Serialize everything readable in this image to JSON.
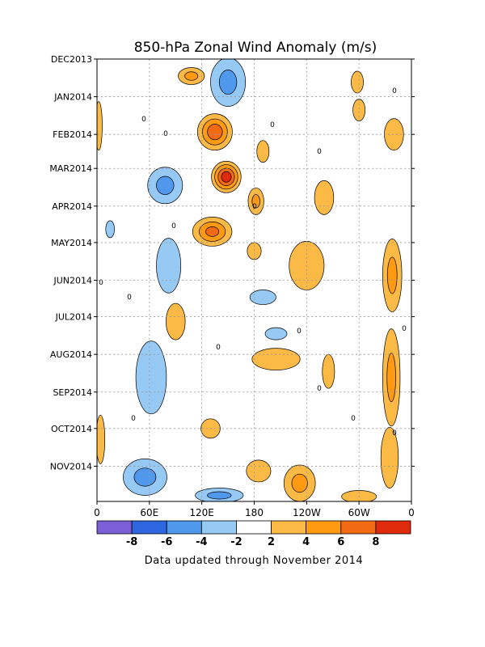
{
  "chart_data": {
    "type": "heatmap",
    "title": "850-hPa Zonal Wind Anomaly (m/s)",
    "footer": "Data updated through November 2014",
    "xlabel": "",
    "ylabel": "",
    "x_ticks": [
      "0",
      "60E",
      "120E",
      "180",
      "120W",
      "60W",
      "0"
    ],
    "y_ticks": [
      "DEC2013",
      "JAN2014",
      "FEB2014",
      "MAR2014",
      "APR2014",
      "MAY2014",
      "JUN2014",
      "JUL2014",
      "AUG2014",
      "SEP2014",
      "OCT2014",
      "NOV2014"
    ],
    "xlim_deg": [
      0,
      360
    ],
    "time_range": [
      "2013-12-01",
      "2014-11-30"
    ],
    "grid": true,
    "contour_interval": 2,
    "zero_label": "0",
    "colorbar": {
      "labels": [
        "-8",
        "-6",
        "-4",
        "-2",
        "2",
        "4",
        "6",
        "8"
      ],
      "colors": [
        "#7a5fd6",
        "#2f67e0",
        "#4f98ec",
        "#96c9f4",
        "#ffffff",
        "#fbb946",
        "#ff9a12",
        "#f36a14",
        "#df2a0c"
      ]
    },
    "anomalies": [
      {
        "lon": 148,
        "date": "2014-03-08",
        "value": 9,
        "lon_width": 34,
        "days": 26
      },
      {
        "lon": 135,
        "date": "2014-01-30",
        "value": 7,
        "lon_width": 40,
        "days": 30
      },
      {
        "lon": 132,
        "date": "2014-04-22",
        "value": 6,
        "lon_width": 45,
        "days": 24
      },
      {
        "lon": 108,
        "date": "2013-12-15",
        "value": 4,
        "lon_width": 30,
        "days": 14
      },
      {
        "lon": 298,
        "date": "2013-12-20",
        "value": 3,
        "lon_width": 14,
        "days": 18
      },
      {
        "lon": 300,
        "date": "2014-01-12",
        "value": 3,
        "lon_width": 14,
        "days": 18
      },
      {
        "lon": 190,
        "date": "2014-02-15",
        "value": 3,
        "lon_width": 14,
        "days": 18
      },
      {
        "lon": 182,
        "date": "2014-03-28",
        "value": 4,
        "lon_width": 18,
        "days": 22
      },
      {
        "lon": 260,
        "date": "2014-03-25",
        "value": 3,
        "lon_width": 22,
        "days": 28
      },
      {
        "lon": 240,
        "date": "2014-05-20",
        "value": 3,
        "lon_width": 40,
        "days": 40
      },
      {
        "lon": 180,
        "date": "2014-05-08",
        "value": 3,
        "lon_width": 16,
        "days": 14
      },
      {
        "lon": 340,
        "date": "2014-02-01",
        "value": 3,
        "lon_width": 22,
        "days": 26
      },
      {
        "lon": 338,
        "date": "2014-05-28",
        "value": 4,
        "lon_width": 22,
        "days": 60
      },
      {
        "lon": 337,
        "date": "2014-08-20",
        "value": 4,
        "lon_width": 20,
        "days": 80
      },
      {
        "lon": 335,
        "date": "2014-10-25",
        "value": 3,
        "lon_width": 20,
        "days": 50
      },
      {
        "lon": 90,
        "date": "2014-07-05",
        "value": 3,
        "lon_width": 22,
        "days": 30
      },
      {
        "lon": 205,
        "date": "2014-08-05",
        "value": 3,
        "lon_width": 55,
        "days": 18
      },
      {
        "lon": 265,
        "date": "2014-08-15",
        "value": 3,
        "lon_width": 14,
        "days": 28
      },
      {
        "lon": 130,
        "date": "2014-10-01",
        "value": 3,
        "lon_width": 22,
        "days": 16
      },
      {
        "lon": 185,
        "date": "2014-11-05",
        "value": 3,
        "lon_width": 28,
        "days": 18
      },
      {
        "lon": 232,
        "date": "2014-11-15",
        "value": 4,
        "lon_width": 36,
        "days": 30
      },
      {
        "lon": 300,
        "date": "2014-11-26",
        "value": 3,
        "lon_width": 40,
        "days": 10
      },
      {
        "lon": 2,
        "date": "2014-01-25",
        "value": 3,
        "lon_width": 8,
        "days": 40
      },
      {
        "lon": 4,
        "date": "2014-10-10",
        "value": 3,
        "lon_width": 10,
        "days": 40
      },
      {
        "lon": 150,
        "date": "2013-12-20",
        "value": -4,
        "lon_width": 40,
        "days": 40
      },
      {
        "lon": 78,
        "date": "2014-03-15",
        "value": -4,
        "lon_width": 40,
        "days": 30
      },
      {
        "lon": 82,
        "date": "2014-05-20",
        "value": -3,
        "lon_width": 28,
        "days": 45
      },
      {
        "lon": 190,
        "date": "2014-06-15",
        "value": -3,
        "lon_width": 30,
        "days": 12
      },
      {
        "lon": 62,
        "date": "2014-08-20",
        "value": -3,
        "lon_width": 35,
        "days": 60
      },
      {
        "lon": 205,
        "date": "2014-07-15",
        "value": -2,
        "lon_width": 25,
        "days": 10
      },
      {
        "lon": 55,
        "date": "2014-11-10",
        "value": -4,
        "lon_width": 50,
        "days": 30
      },
      {
        "lon": 140,
        "date": "2014-11-25",
        "value": -4,
        "lon_width": 55,
        "days": 12
      },
      {
        "lon": 15,
        "date": "2014-04-20",
        "value": -2,
        "lon_width": 10,
        "days": 14
      }
    ]
  }
}
